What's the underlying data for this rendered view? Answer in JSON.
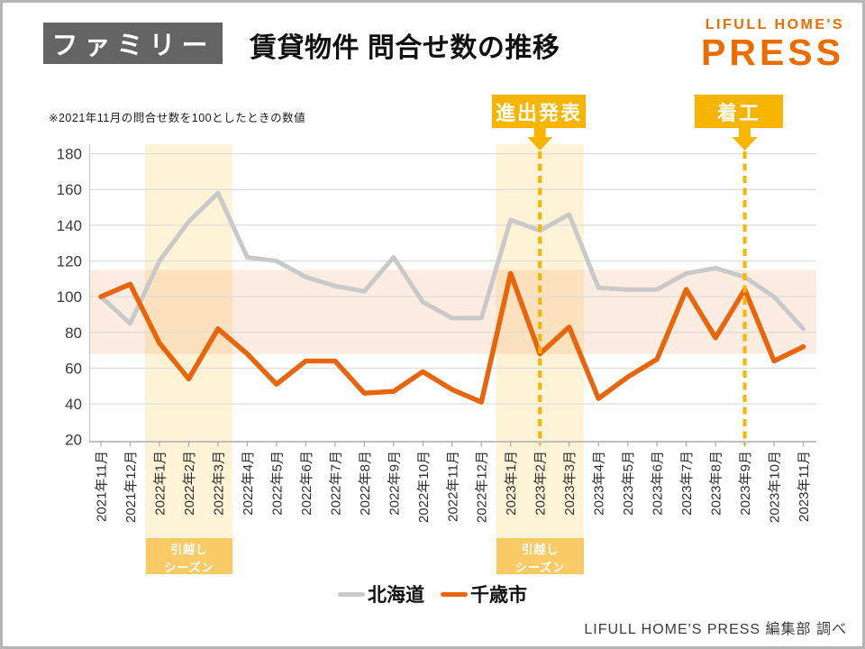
{
  "header": {
    "category_badge": "ファミリー",
    "title": "賃貸物件 問合せ数の推移"
  },
  "logo": {
    "line1": "LIFULL HOME'S",
    "line2": "PRESS"
  },
  "note": "※2021年11月の問合せ数を100としたときの数値",
  "annotations": {
    "announcement": "進出発表",
    "construction": "着工"
  },
  "season_badge": {
    "line1": "引越し",
    "line2": "シーズン"
  },
  "legend": [
    {
      "name": "北海道",
      "color": "#c9c9c9"
    },
    {
      "name": "千歳市",
      "color": "#e8650c"
    }
  ],
  "credit": "LIFULL HOME'S PRESS 編集部 調べ",
  "colors": {
    "accent_orange": "#ed6c00",
    "line_hokkaido": "#c9c9c9",
    "line_chitose": "#e8650c",
    "event_gold": "#f7b500",
    "season_badge_yellow": "#f8cb66",
    "x_highlight_band": "#fdf4df",
    "y_highlight_band": "#fbeee2",
    "category_badge_gray": "#646464"
  },
  "chart_data": {
    "type": "line",
    "title": "賃貸物件 問合せ数の推移",
    "note": "※2021年11月の問合せ数を100としたときの数値",
    "x": [
      "2021年11月",
      "2021年12月",
      "2022年1月",
      "2022年2月",
      "2022年3月",
      "2022年4月",
      "2022年5月",
      "2022年6月",
      "2022年7月",
      "2022年8月",
      "2022年9月",
      "2022年10月",
      "2022年11月",
      "2022年12月",
      "2023年1月",
      "2023年2月",
      "2023年3月",
      "2023年4月",
      "2023年5月",
      "2023年6月",
      "2023年7月",
      "2023年8月",
      "2023年9月",
      "2023年10月",
      "2023年11月"
    ],
    "series": [
      {
        "name": "北海道",
        "color": "#c9c9c9",
        "values": [
          100,
          85,
          120,
          142,
          158,
          122,
          120,
          111,
          106,
          103,
          122,
          97,
          88,
          88,
          143,
          137,
          146,
          105,
          104,
          104,
          113,
          116,
          111,
          100,
          82
        ]
      },
      {
        "name": "千歳市",
        "color": "#e8650c",
        "values": [
          100,
          107,
          74,
          54,
          82,
          68,
          51,
          64,
          64,
          46,
          47,
          58,
          48,
          41,
          113,
          68,
          83,
          43,
          55,
          65,
          104,
          77,
          104,
          64,
          72
        ]
      }
    ],
    "ylim": [
      20,
      180
    ],
    "ytick_step": 20,
    "grid": true,
    "legend_position": "bottom",
    "highlight_x_spans": [
      {
        "from": "2022年1月",
        "to": "2022年3月",
        "label": "引越しシーズン"
      },
      {
        "from": "2023年1月",
        "to": "2023年3月",
        "label": "引越しシーズン"
      }
    ],
    "highlight_y_band": {
      "from": 68,
      "to": 115
    },
    "event_lines": [
      {
        "x": "2023年2月",
        "label": "進出発表"
      },
      {
        "x": "2023年9月",
        "label": "着工"
      }
    ]
  }
}
